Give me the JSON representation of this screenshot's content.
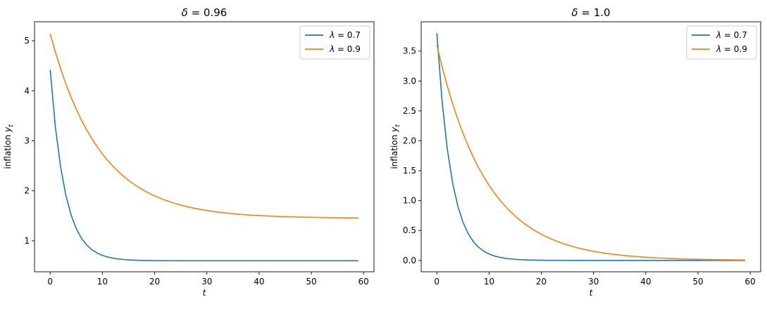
{
  "chart_data": [
    {
      "type": "line",
      "title_var": "δ",
      "title_val": "0.96",
      "xlabel": "t",
      "ylabel_text": "inflation",
      "ylabel_var": "y",
      "ylabel_sub": "t",
      "xlim": [
        -3,
        62
      ],
      "ylim": [
        0.38,
        5.38
      ],
      "xticks": [
        0,
        10,
        20,
        30,
        40,
        50,
        60
      ],
      "yticks": [
        1,
        2,
        3,
        4,
        5
      ],
      "ytick_labels": [
        "1",
        "2",
        "3",
        "4",
        "5"
      ],
      "legend_position": "upper right",
      "x_start": 0,
      "x_end": 59,
      "series": [
        {
          "name_var": "λ",
          "name_val": "0.7",
          "color": "#1f77b4",
          "start": 4.42,
          "end": 0.6,
          "decay": 0.7
        },
        {
          "name_var": "λ",
          "name_val": "0.9",
          "color": "#ff7f0e",
          "start": 5.14,
          "end": 1.45,
          "decay": 0.9
        }
      ]
    },
    {
      "type": "line",
      "title_var": "δ",
      "title_val": "1.0",
      "xlabel": "t",
      "ylabel_text": "inflation",
      "ylabel_var": "y",
      "ylabel_sub": "t",
      "xlim": [
        -3,
        62
      ],
      "ylim": [
        -0.19,
        3.99
      ],
      "xticks": [
        0,
        10,
        20,
        30,
        40,
        50,
        60
      ],
      "yticks": [
        0,
        0.5,
        1,
        1.5,
        2,
        2.5,
        3,
        3.5
      ],
      "ytick_labels": [
        "0.0",
        "0.5",
        "1.0",
        "1.5",
        "2.0",
        "2.5",
        "3.0",
        "3.5"
      ],
      "legend_position": "upper right",
      "x_start": 0,
      "x_end": 59,
      "series": [
        {
          "name_var": "λ",
          "name_val": "0.7",
          "color": "#1f77b4",
          "start": 3.8,
          "end": 0.0,
          "decay": 0.7
        },
        {
          "name_var": "λ",
          "name_val": "0.9",
          "color": "#ff7f0e",
          "start": 3.6,
          "end": 0.0,
          "decay": 0.9
        }
      ]
    }
  ]
}
